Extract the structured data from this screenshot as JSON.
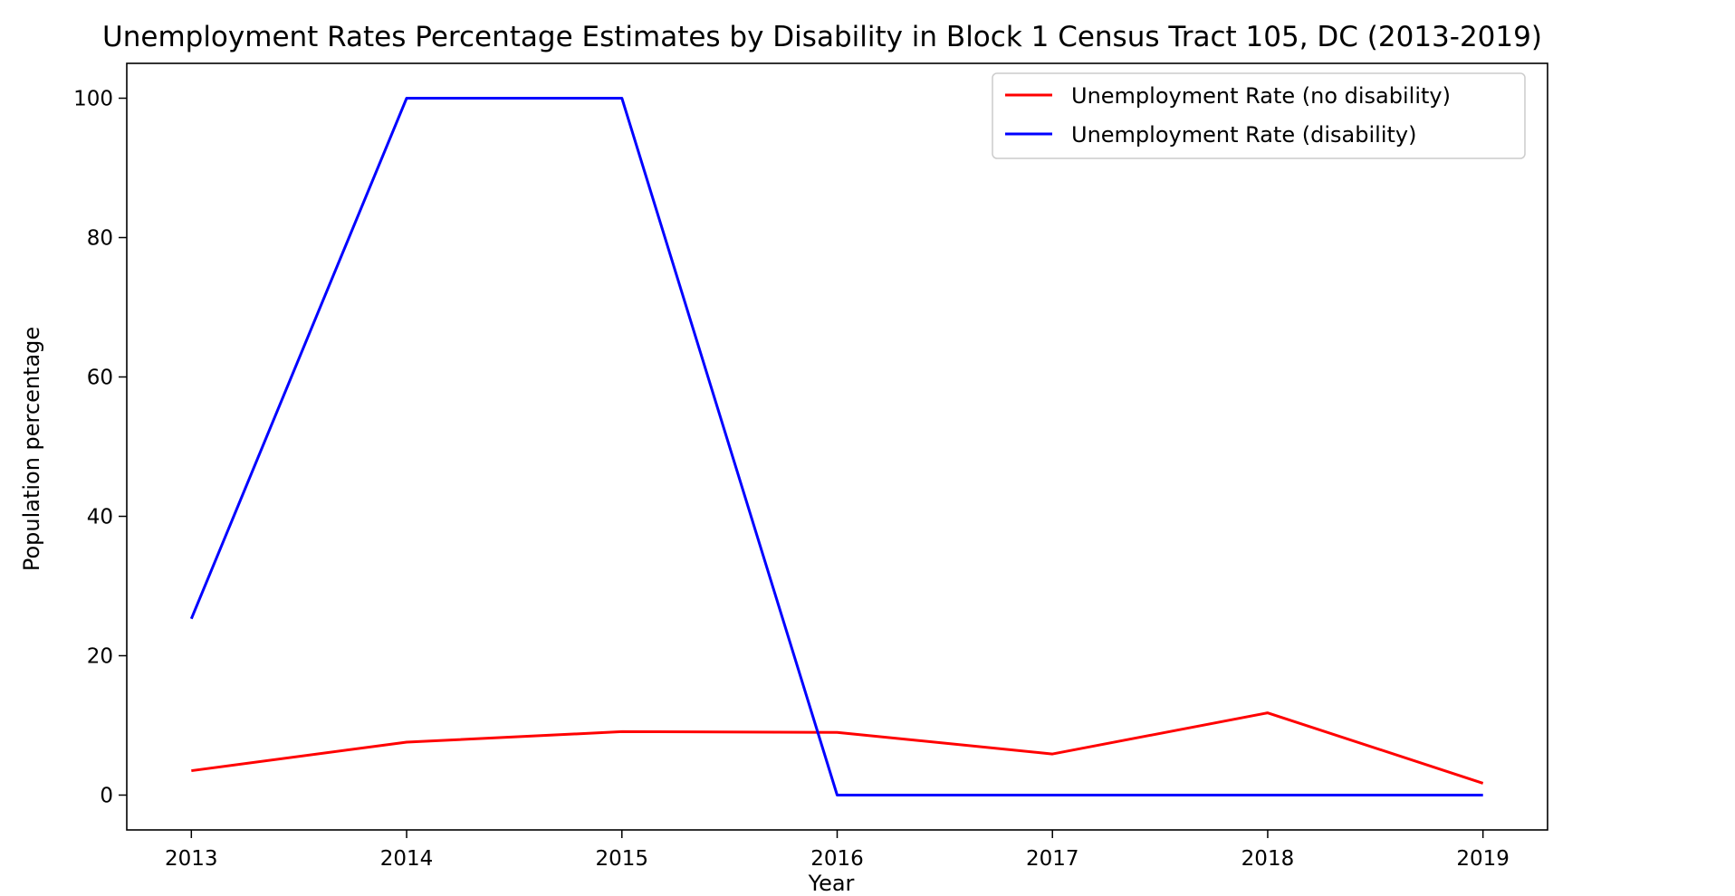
{
  "chart_data": {
    "type": "line",
    "title": "Unemployment Rates Percentage Estimates by Disability in Block 1 Census Tract 105, DC (2013-2019)",
    "xlabel": "Year",
    "ylabel": "Population percentage",
    "x": [
      2013,
      2014,
      2015,
      2016,
      2017,
      2018,
      2019
    ],
    "series": [
      {
        "name": "Unemployment Rate (no disability)",
        "color": "#ff0000",
        "values": [
          3.5,
          7.6,
          9.1,
          9.0,
          5.9,
          11.8,
          1.7
        ]
      },
      {
        "name": "Unemployment Rate (disability)",
        "color": "#0000ff",
        "values": [
          25.3,
          100,
          100,
          0,
          0,
          0,
          0
        ]
      }
    ],
    "xlim": [
      2012.7,
      2019.3
    ],
    "ylim": [
      -5,
      105
    ],
    "xticks": [
      2013,
      2014,
      2015,
      2016,
      2017,
      2018,
      2019
    ],
    "yticks": [
      0,
      20,
      40,
      60,
      80,
      100
    ],
    "legend_position": "upper right",
    "grid": false
  }
}
